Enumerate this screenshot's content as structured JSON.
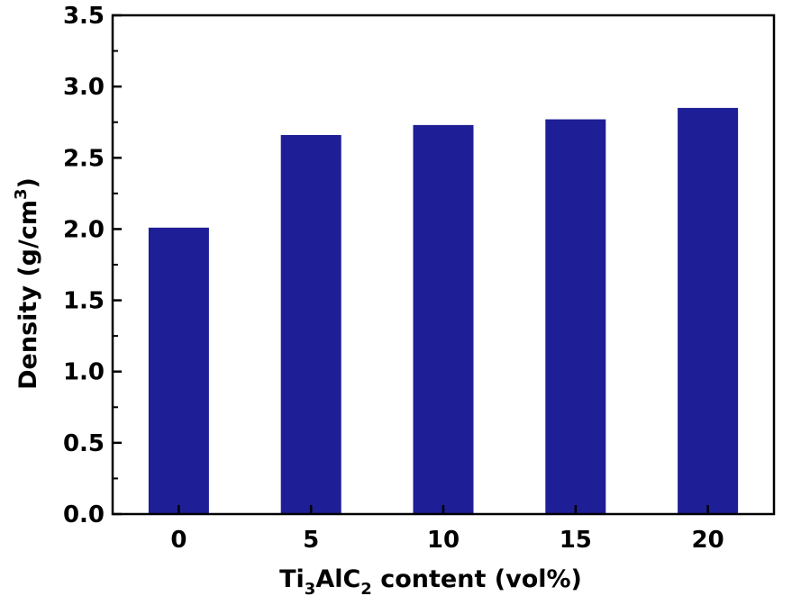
{
  "chart_data": {
    "type": "bar",
    "title": "",
    "xlabel": {
      "prefix": "Ti",
      "sub1": "3",
      "mid": "AlC",
      "sub2": "2",
      "suffix": " content (vol%)"
    },
    "ylabel": {
      "main": "Density (g/cm",
      "sup": "3",
      "close": ")"
    },
    "categories": [
      "0",
      "5",
      "10",
      "15",
      "20"
    ],
    "values": [
      2.01,
      2.66,
      2.73,
      2.77,
      2.85
    ],
    "ylim": [
      0,
      3.5
    ],
    "yticks": [
      "0.0",
      "0.5",
      "1.0",
      "1.5",
      "2.0",
      "2.5",
      "3.0",
      "3.5"
    ],
    "grid": false,
    "bar_color": "#1e1e96"
  }
}
